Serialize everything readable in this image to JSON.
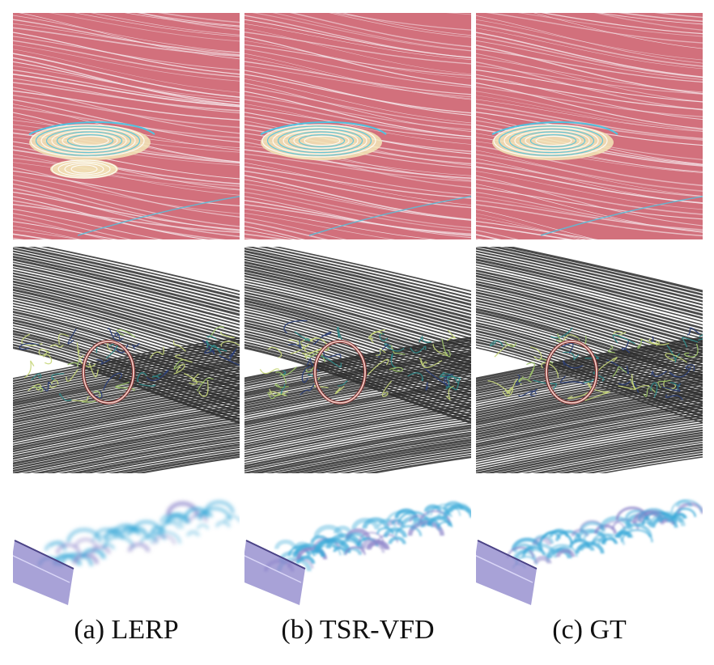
{
  "figure": {
    "columns": [
      {
        "id": "lerp",
        "caption": "(a) LERP"
      },
      {
        "id": "tsrvfd",
        "caption": "(b) TSR-VFD"
      },
      {
        "id": "gt",
        "caption": "(c) GT"
      }
    ],
    "rows": [
      {
        "id": "row1",
        "description_icon": "pink-streamline-render"
      },
      {
        "id": "row2",
        "description_icon": "gray-streamline-render"
      },
      {
        "id": "row3",
        "description_icon": "blue-volume-render"
      }
    ],
    "colors": {
      "pink_bg": "#d2707c",
      "streak": "#f4e6ea",
      "cyan": "#4fc3e0",
      "cream": "#f3e7b8",
      "gray_line": "#2a2a2a",
      "yellow_green": "#c7d67a",
      "teal": "#2f8a8a",
      "navy": "#2b3f7a",
      "ellipse_outer": "#7a3030",
      "ellipse_inner": "#f3c9c2",
      "blue_vol": "#3aa9d8",
      "purple_vol": "#8b83c9"
    }
  }
}
